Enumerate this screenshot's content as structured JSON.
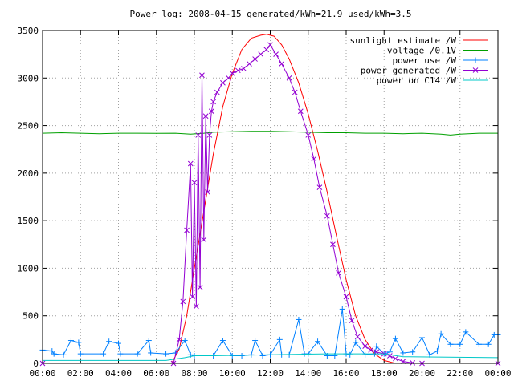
{
  "chart_data": {
    "type": "line",
    "title": "Power log: 2008-04-15 generated/kWh=21.9 used/kWh=3.5",
    "xlabel": "",
    "ylabel": "",
    "xlim": [
      0,
      24
    ],
    "ylim": [
      0,
      3500
    ],
    "x_ticks": [
      {
        "v": 0,
        "label": "00:00"
      },
      {
        "v": 2,
        "label": "02:00"
      },
      {
        "v": 4,
        "label": "04:00"
      },
      {
        "v": 6,
        "label": "06:00"
      },
      {
        "v": 8,
        "label": "08:00"
      },
      {
        "v": 10,
        "label": "10:00"
      },
      {
        "v": 12,
        "label": "12:00"
      },
      {
        "v": 14,
        "label": "14:00"
      },
      {
        "v": 16,
        "label": "16:00"
      },
      {
        "v": 18,
        "label": "18:00"
      },
      {
        "v": 20,
        "label": "20:00"
      },
      {
        "v": 22,
        "label": "22:00"
      },
      {
        "v": 24,
        "label": "00:00"
      }
    ],
    "y_ticks": [
      0,
      500,
      1000,
      1500,
      2000,
      2500,
      3000,
      3500
    ],
    "grid": true,
    "legend_position": "top-right",
    "series": [
      {
        "name": "sunlight estimate /W",
        "color": "#ff0000",
        "marker": "none",
        "x": [
          0,
          6.8,
          7.2,
          7.6,
          8.0,
          8.5,
          9.0,
          9.5,
          10.0,
          10.5,
          11.0,
          11.5,
          11.8,
          12.2,
          12.6,
          13.0,
          13.5,
          14.0,
          14.5,
          15.0,
          15.5,
          16.0,
          16.5,
          17.0,
          17.5,
          18.0,
          18.5,
          18.8,
          24
        ],
        "values": [
          0,
          0,
          150,
          500,
          1000,
          1600,
          2200,
          2700,
          3050,
          3300,
          3420,
          3450,
          3460,
          3440,
          3350,
          3200,
          2950,
          2620,
          2230,
          1800,
          1330,
          880,
          500,
          250,
          100,
          30,
          5,
          0,
          0
        ]
      },
      {
        "name": "voltage /0.1V",
        "color": "#00a000",
        "marker": "none",
        "x": [
          0,
          1,
          2,
          3,
          4,
          5,
          6,
          7,
          7.8,
          8.5,
          9,
          10,
          11,
          12,
          13,
          14,
          15,
          16,
          17,
          18,
          19,
          20,
          21,
          21.5,
          22,
          23,
          24
        ],
        "values": [
          2420,
          2425,
          2420,
          2415,
          2420,
          2420,
          2418,
          2420,
          2410,
          2420,
          2430,
          2435,
          2440,
          2440,
          2435,
          2430,
          2425,
          2425,
          2420,
          2420,
          2415,
          2420,
          2410,
          2400,
          2410,
          2420,
          2420
        ]
      },
      {
        "name": "power use /W",
        "color": "#0080ff",
        "marker": "plus",
        "x": [
          0,
          0.5,
          0.6,
          1.1,
          1.5,
          1.9,
          2.0,
          3.2,
          3.5,
          4.0,
          4.1,
          5.0,
          5.6,
          5.7,
          6.5,
          7.0,
          7.5,
          7.8,
          8.0,
          9.0,
          9.5,
          10.0,
          10.5,
          11.0,
          11.2,
          11.6,
          12.0,
          12.5,
          12.6,
          13.0,
          13.5,
          13.8,
          14.0,
          14.5,
          15.0,
          15.4,
          15.8,
          16.0,
          16.2,
          16.5,
          17.0,
          17.5,
          17.6,
          18.0,
          18.3,
          18.6,
          19.0,
          19.5,
          20.0,
          20.4,
          20.8,
          21.0,
          21.5,
          22.0,
          22.3,
          23.0,
          23.5,
          23.8,
          24
        ],
        "values": [
          140,
          130,
          100,
          90,
          240,
          220,
          100,
          100,
          230,
          210,
          100,
          100,
          240,
          110,
          100,
          110,
          240,
          90,
          80,
          80,
          240,
          80,
          80,
          90,
          240,
          80,
          90,
          250,
          90,
          90,
          460,
          100,
          100,
          230,
          80,
          80,
          570,
          100,
          90,
          220,
          90,
          100,
          180,
          100,
          120,
          260,
          110,
          120,
          270,
          90,
          130,
          310,
          200,
          200,
          330,
          200,
          200,
          300,
          300
        ]
      },
      {
        "name": "power generated /W",
        "color": "#9400d3",
        "marker": "cross",
        "x": [
          0,
          6.9,
          7.2,
          7.4,
          7.6,
          7.8,
          7.9,
          8.0,
          8.1,
          8.2,
          8.3,
          8.4,
          8.5,
          8.6,
          8.7,
          8.8,
          8.9,
          9.0,
          9.2,
          9.5,
          9.8,
          10.0,
          10.3,
          10.6,
          10.9,
          11.2,
          11.5,
          11.8,
          12.0,
          12.3,
          12.6,
          13.0,
          13.3,
          13.6,
          14.0,
          14.3,
          14.6,
          15.0,
          15.3,
          15.6,
          16.0,
          16.3,
          16.6,
          17.0,
          17.3,
          17.6,
          18.0,
          18.3,
          18.6,
          19.0,
          19.5,
          20.0,
          24
        ],
        "values": [
          0,
          0,
          250,
          650,
          1400,
          2100,
          700,
          1900,
          600,
          2400,
          800,
          3030,
          1300,
          2600,
          1800,
          2400,
          2650,
          2750,
          2850,
          2950,
          3000,
          3050,
          3080,
          3100,
          3150,
          3200,
          3250,
          3300,
          3350,
          3250,
          3150,
          3000,
          2850,
          2650,
          2400,
          2150,
          1850,
          1550,
          1250,
          950,
          700,
          450,
          280,
          180,
          140,
          120,
          100,
          80,
          50,
          20,
          5,
          0,
          0
        ]
      },
      {
        "name": "power on C14 /W",
        "color": "#00c8c8",
        "marker": "none",
        "x": [
          0,
          6.5,
          7.5,
          8.0,
          9.0,
          12.0,
          15.0,
          18.0,
          19.0,
          24
        ],
        "values": [
          30,
          30,
          60,
          80,
          80,
          90,
          100,
          100,
          70,
          60
        ]
      }
    ]
  }
}
